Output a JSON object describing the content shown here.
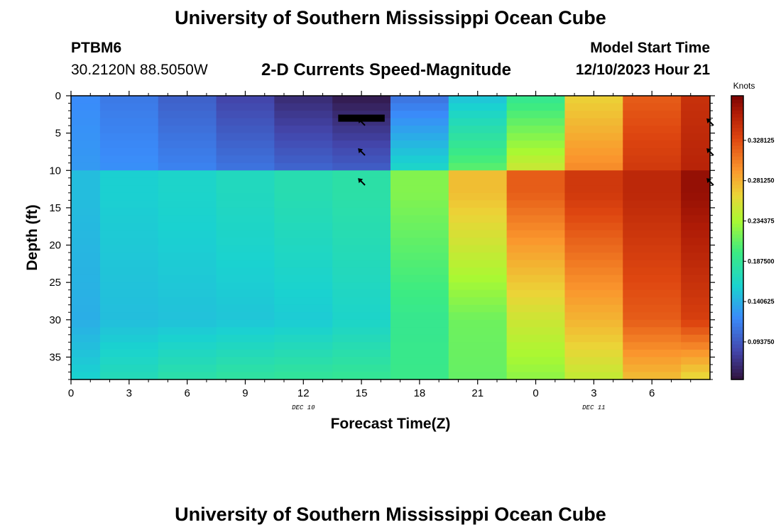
{
  "page": {
    "title_top": "University of Southern Mississippi Ocean Cube",
    "title_bottom": "University of Southern Mississippi Ocean Cube",
    "station_id": "PTBM6",
    "station_coords": "30.2120N  88.5050W",
    "plot_subtitle": "2-D Currents Speed-Magnitude",
    "model_start_label": "Model Start Time",
    "model_start_value": "12/10/2023 Hour 21"
  },
  "chart_data": {
    "type": "heatmap",
    "title": "2-D Currents Speed-Magnitude",
    "xlabel": "Forecast Time(Z)",
    "ylabel": "Depth (ft)",
    "x_tick_labels": [
      "0",
      "3",
      "6",
      "9",
      "12",
      "15",
      "18",
      "21",
      "0",
      "3",
      "6"
    ],
    "x_range_hours": [
      0,
      33
    ],
    "date_labels": [
      {
        "text": "DEC 10",
        "hour": 12
      },
      {
        "text": "DEC 11",
        "hour": 27
      }
    ],
    "y_tick_labels": [
      "0",
      "5",
      "10",
      "15",
      "20",
      "25",
      "30",
      "35"
    ],
    "y_range_ft": [
      0,
      38
    ],
    "colorbar": {
      "label": "Knots",
      "range": [
        0.05,
        0.38
      ],
      "tick_labels": [
        "0.328125",
        "0.281250",
        "0.234375",
        "0.187500",
        "0.140625",
        "0.093750"
      ],
      "tick_values": [
        0.328125,
        0.28125,
        0.234375,
        0.1875,
        0.140625,
        0.09375
      ]
    },
    "column_hours": [
      0,
      3,
      6,
      9,
      12,
      15,
      18,
      21,
      24,
      27,
      30,
      33
    ],
    "profiles": [
      {
        "hour": 0,
        "surface": 0.122,
        "upper_bottom": 0.13,
        "lower_top": 0.148,
        "lower_mid": 0.14,
        "bottom": 0.16
      },
      {
        "hour": 3,
        "surface": 0.112,
        "upper_bottom": 0.125,
        "lower_top": 0.158,
        "lower_mid": 0.148,
        "bottom": 0.172
      },
      {
        "hour": 6,
        "surface": 0.098,
        "upper_bottom": 0.118,
        "lower_top": 0.162,
        "lower_mid": 0.15,
        "bottom": 0.18
      },
      {
        "hour": 9,
        "surface": 0.082,
        "upper_bottom": 0.11,
        "lower_top": 0.168,
        "lower_mid": 0.152,
        "bottom": 0.185
      },
      {
        "hour": 12,
        "surface": 0.066,
        "upper_bottom": 0.102,
        "lower_top": 0.175,
        "lower_mid": 0.155,
        "bottom": 0.188
      },
      {
        "hour": 15,
        "surface": 0.055,
        "upper_bottom": 0.098,
        "lower_top": 0.18,
        "lower_mid": 0.162,
        "bottom": 0.19
      },
      {
        "hour": 18,
        "surface": 0.108,
        "upper_bottom": 0.165,
        "lower_top": 0.222,
        "lower_mid": 0.192,
        "bottom": 0.195
      },
      {
        "hour": 21,
        "surface": 0.15,
        "upper_bottom": 0.21,
        "lower_top": 0.275,
        "lower_mid": 0.215,
        "bottom": 0.212
      },
      {
        "hour": 24,
        "surface": 0.19,
        "upper_bottom": 0.25,
        "lower_top": 0.32,
        "lower_mid": 0.25,
        "bottom": 0.225
      },
      {
        "hour": 27,
        "surface": 0.265,
        "upper_bottom": 0.3,
        "lower_top": 0.34,
        "lower_mid": 0.28,
        "bottom": 0.245
      },
      {
        "hour": 30,
        "surface": 0.32,
        "upper_bottom": 0.34,
        "lower_top": 0.352,
        "lower_mid": 0.32,
        "bottom": 0.275
      },
      {
        "hour": 33,
        "surface": 0.345,
        "upper_bottom": 0.355,
        "lower_top": 0.37,
        "lower_mid": 0.335,
        "bottom": 0.26
      }
    ],
    "direction_arrows": [
      {
        "hour": 15,
        "depth_ft": 3.5
      },
      {
        "hour": 15,
        "depth_ft": 7.5
      },
      {
        "hour": 15,
        "depth_ft": 11.5
      },
      {
        "hour": 33,
        "depth_ft": 3.5
      },
      {
        "hour": 33,
        "depth_ft": 7.5
      },
      {
        "hour": 33,
        "depth_ft": 11.5
      }
    ],
    "marker_bar": {
      "hour_start": 13.8,
      "hour_end": 16.2,
      "depth_ft": 3
    }
  }
}
